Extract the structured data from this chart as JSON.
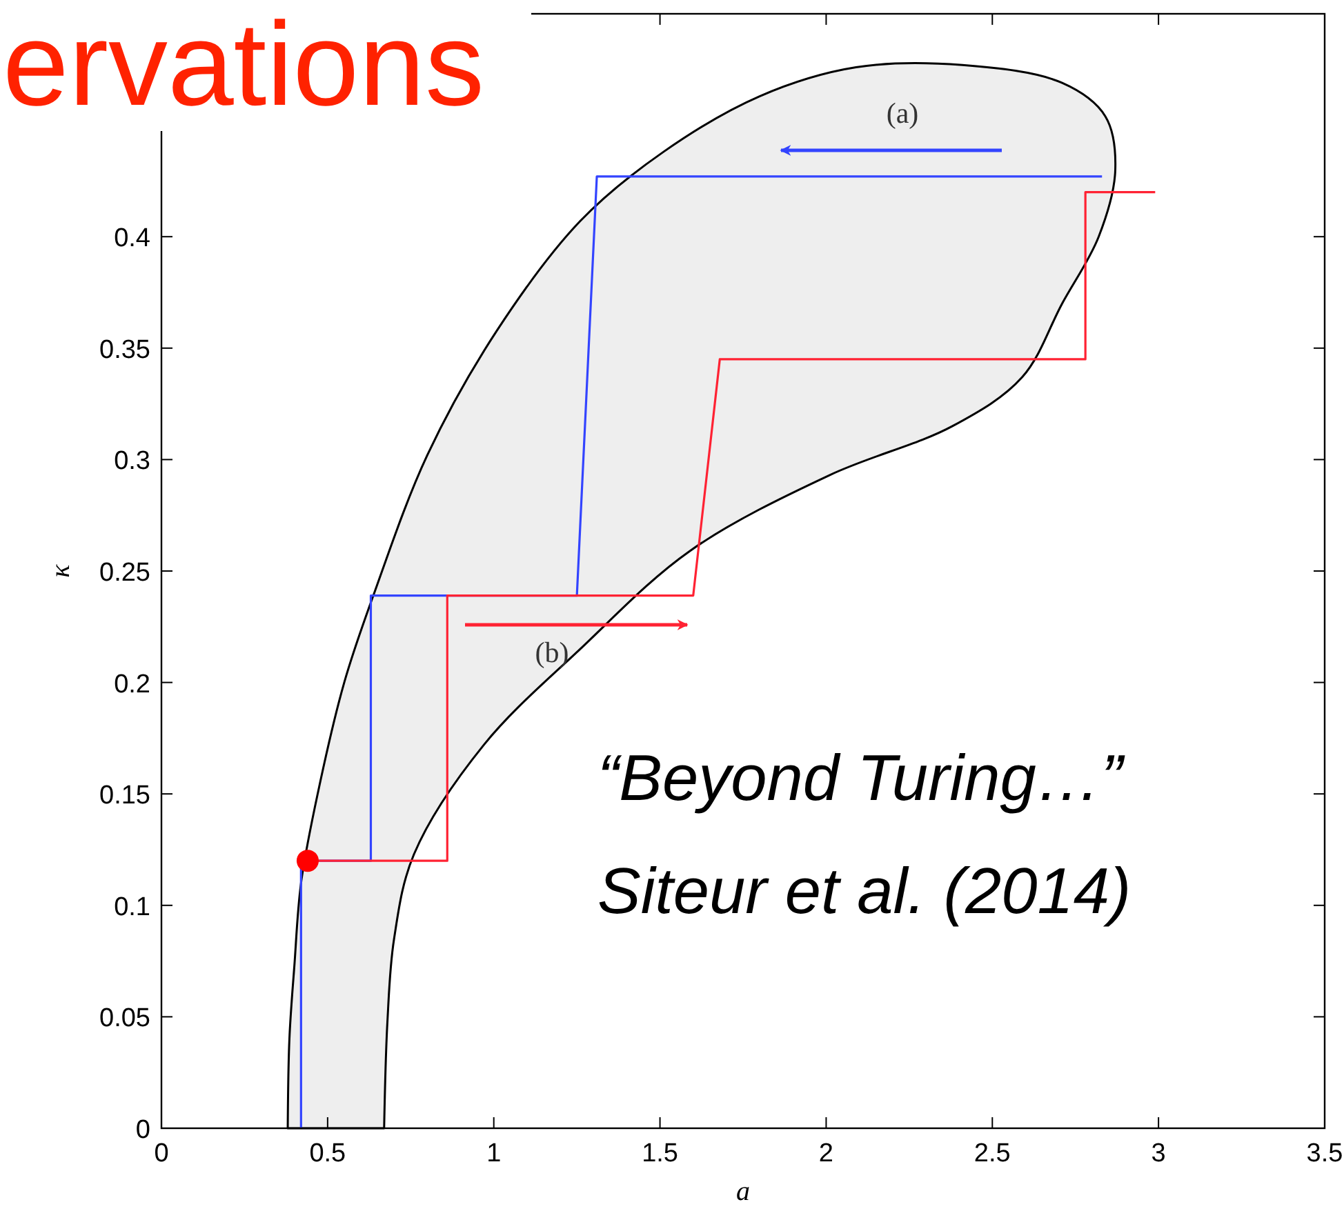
{
  "chart_data": {
    "type": "line",
    "title": "ervations",
    "xlabel": "a",
    "ylabel": "κ",
    "xlim": [
      0,
      3.5
    ],
    "ylim": [
      0,
      0.5
    ],
    "xticks": [
      0,
      0.5,
      1,
      1.5,
      2,
      2.5,
      3,
      3.5
    ],
    "yticks": [
      0,
      0.05,
      0.1,
      0.15,
      0.2,
      0.25,
      0.3,
      0.35,
      0.4
    ],
    "grid": false,
    "series": [
      {
        "type": "area",
        "color": "#000000",
        "x": [
          0.38,
          0.385,
          0.4,
          0.42,
          0.47,
          0.55,
          0.64,
          0.8,
          1.01,
          1.26,
          1.51,
          1.8,
          2.09,
          2.41,
          2.71,
          2.84,
          2.87,
          2.82,
          2.71,
          2.59,
          2.38,
          2.01,
          1.59,
          1.26,
          0.97,
          0.76,
          0.7,
          0.68,
          0.67
        ],
        "values": [
          0,
          0.04,
          0.073,
          0.11,
          0.15,
          0.2,
          0.24,
          0.302,
          0.358,
          0.407,
          0.438,
          0.463,
          0.476,
          0.477,
          0.469,
          0.454,
          0.43,
          0.4,
          0.37,
          0.337,
          0.315,
          0.293,
          0.259,
          0.215,
          0.172,
          0.123,
          0.085,
          0.048,
          0
        ]
      },
      {
        "type": "line",
        "color": "#3344ff",
        "x": [
          2.83,
          1.31,
          1.25,
          0.63,
          0.63,
          0.42,
          0.42
        ],
        "values": [
          0.427,
          0.427,
          0.239,
          0.239,
          0.12,
          0.12,
          0
        ]
      },
      {
        "type": "line",
        "color": "#ff2233",
        "x": [
          0.44,
          0.86,
          0.86,
          1.6,
          1.68,
          2.78,
          2.78,
          2.99
        ],
        "values": [
          0.12,
          0.12,
          0.239,
          0.239,
          0.345,
          0.345,
          0.42,
          0.42
        ]
      },
      {
        "type": "scatter",
        "marker": "circle",
        "color": "#ff0000",
        "x": [
          0.44
        ],
        "values": [
          0.12
        ]
      }
    ],
    "annotations": [
      "(a)",
      "(b)",
      "“Beyond Turing…”",
      "Siteur et al. (2014)"
    ]
  }
}
